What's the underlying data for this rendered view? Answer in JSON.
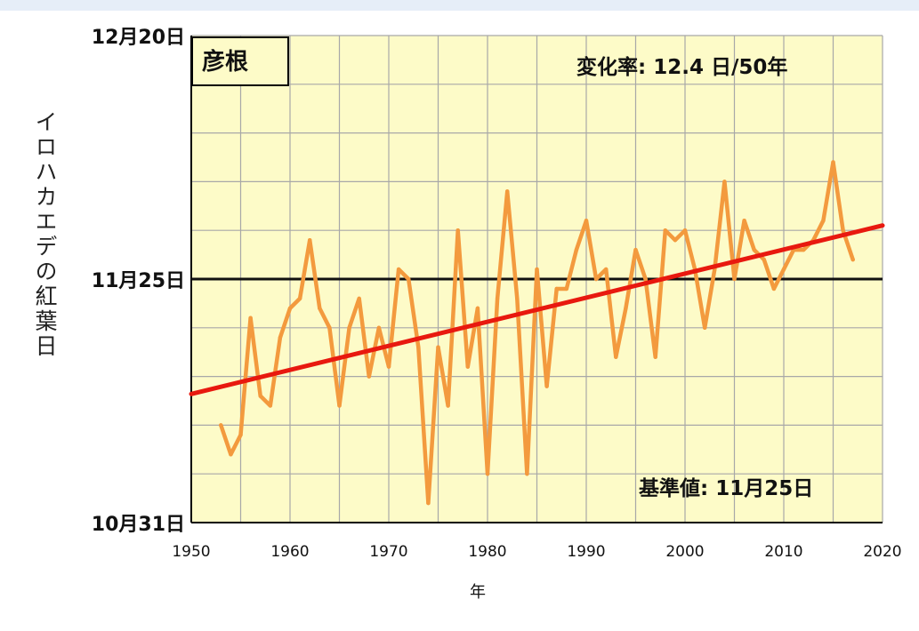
{
  "chart_data": {
    "type": "line",
    "station": "彦根",
    "rate_text": "変化率: 12.4 日/50年",
    "baseline_text": "基準値: 11月25日",
    "xlabel": "年",
    "ylabel": "イロハカエデの紅葉日",
    "xlim": [
      1950,
      2020
    ],
    "x_ticks": [
      1950,
      1960,
      1970,
      1980,
      1990,
      2000,
      2010,
      2020
    ],
    "y_tick_labels": [
      {
        "value": 0,
        "label": "10月31日"
      },
      {
        "value": 25,
        "label": "11月25日"
      },
      {
        "value": 50,
        "label": "12月20日"
      }
    ],
    "ylim": [
      0,
      50
    ],
    "y_unit": "days after 10月31日",
    "baseline_value": 25,
    "series": [
      {
        "kind": "observed",
        "color": "#f39a3e",
        "x": [
          1953,
          1954,
          1955,
          1956,
          1957,
          1958,
          1959,
          1960,
          1961,
          1962,
          1963,
          1964,
          1965,
          1966,
          1967,
          1968,
          1969,
          1970,
          1971,
          1972,
          1973,
          1974,
          1975,
          1976,
          1977,
          1978,
          1979,
          1980,
          1981,
          1982,
          1983,
          1984,
          1985,
          1986,
          1987,
          1988,
          1989,
          1990,
          1991,
          1992,
          1993,
          1994,
          1995,
          1996,
          1997,
          1998,
          1999,
          2000,
          2001,
          2002,
          2003,
          2004,
          2005,
          2006,
          2007,
          2008,
          2009,
          2010,
          2011,
          2012,
          2013,
          2014,
          2015,
          2016,
          2017
        ],
        "values": [
          10,
          7,
          9,
          21,
          13,
          12,
          19,
          22,
          23,
          29,
          22,
          20,
          12,
          20,
          23,
          15,
          20,
          16,
          26,
          25,
          18,
          2,
          18,
          12,
          30,
          16,
          22,
          5,
          23,
          34,
          23,
          5,
          26,
          14,
          24,
          24,
          28,
          31,
          25,
          26,
          17,
          22,
          28,
          25,
          17,
          30,
          29,
          30,
          26,
          20,
          26,
          35,
          25,
          31,
          28,
          27,
          24,
          26,
          28,
          28,
          29,
          31,
          37,
          30,
          27
        ]
      },
      {
        "kind": "trend",
        "color": "#e8190f",
        "x": [
          1950,
          2020
        ],
        "values": [
          13.2,
          30.5
        ]
      }
    ]
  }
}
